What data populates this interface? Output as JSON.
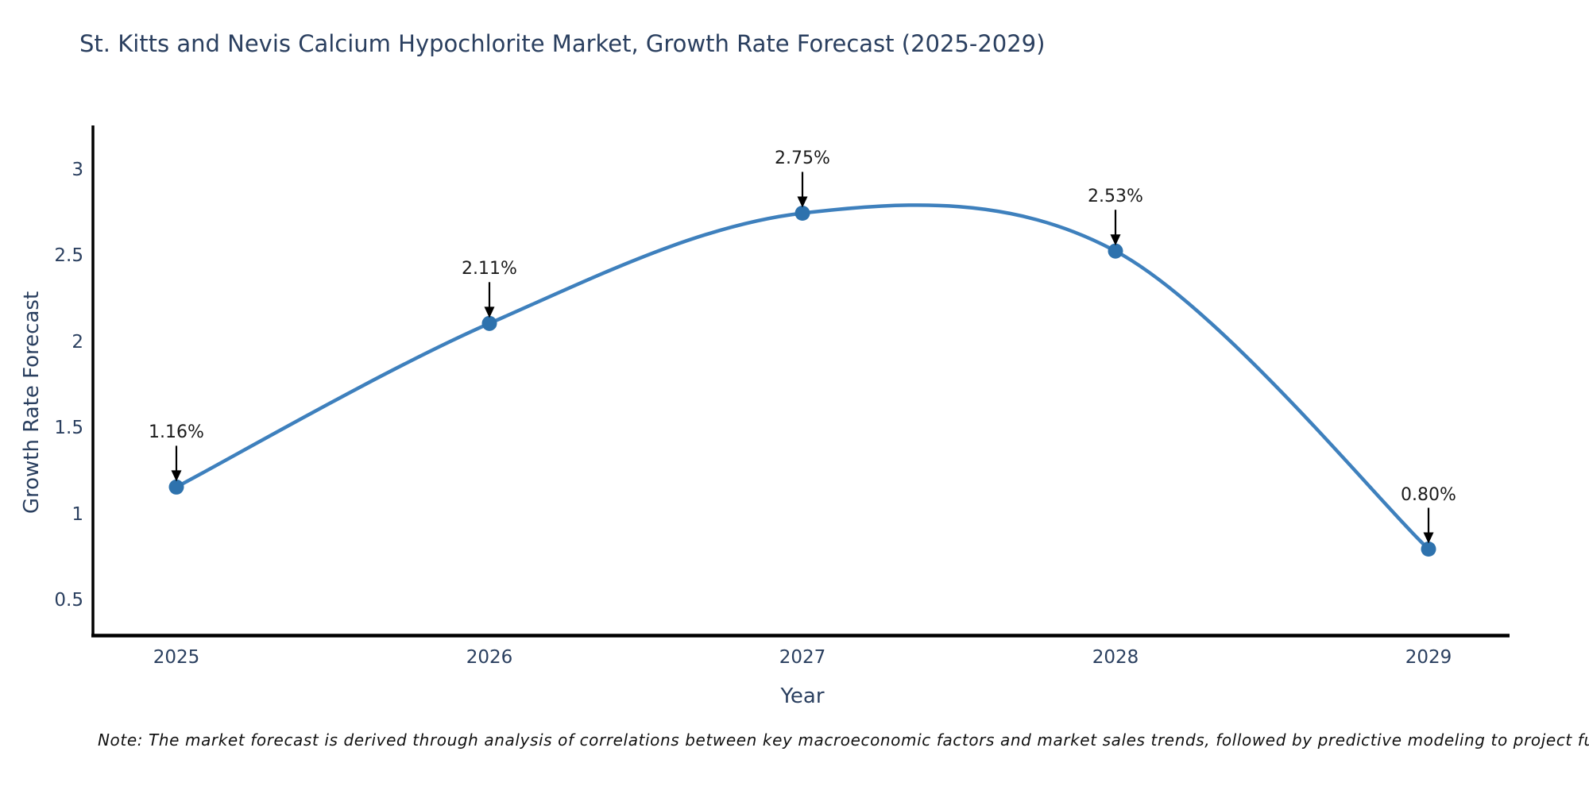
{
  "title": "St. Kitts and Nevis Calcium Hypochlorite Market, Growth Rate Forecast (2025-2029)",
  "note": "Note: The market forecast is derived through analysis of correlations between key macroeconomic factors and market sales trends, followed by predictive modeling to project future sales",
  "chart_data": {
    "type": "line",
    "x": [
      2025,
      2026,
      2027,
      2028,
      2029
    ],
    "values": [
      1.16,
      2.11,
      2.75,
      2.53,
      0.8
    ],
    "point_labels": [
      "1.16%",
      "2.11%",
      "2.75%",
      "2.53%",
      "0.80%"
    ],
    "xtick_labels": [
      "2025",
      "2026",
      "2027",
      "2028",
      "2029"
    ],
    "yticks": [
      0.5,
      1,
      1.5,
      2,
      2.5,
      3
    ],
    "ytick_labels": [
      "0.5",
      "1",
      "1.5",
      "2",
      "2.5",
      "3"
    ],
    "title": "St. Kitts and Nevis Calcium Hypochlorite Market, Growth Rate Forecast (2025-2029)",
    "xlabel": "Year",
    "ylabel": "Growth Rate Forecast",
    "ylim": [
      0.3,
      3.25
    ],
    "grid": false,
    "legend": false,
    "line_smoothing": "spline",
    "colors": {
      "line": "#3e80bd",
      "marker": "#2e72ad",
      "spine": "#000000",
      "axis_text": "#2a3f5f",
      "annotation_text": "#1b1b1b",
      "annotation_arrow": "#000000"
    }
  }
}
